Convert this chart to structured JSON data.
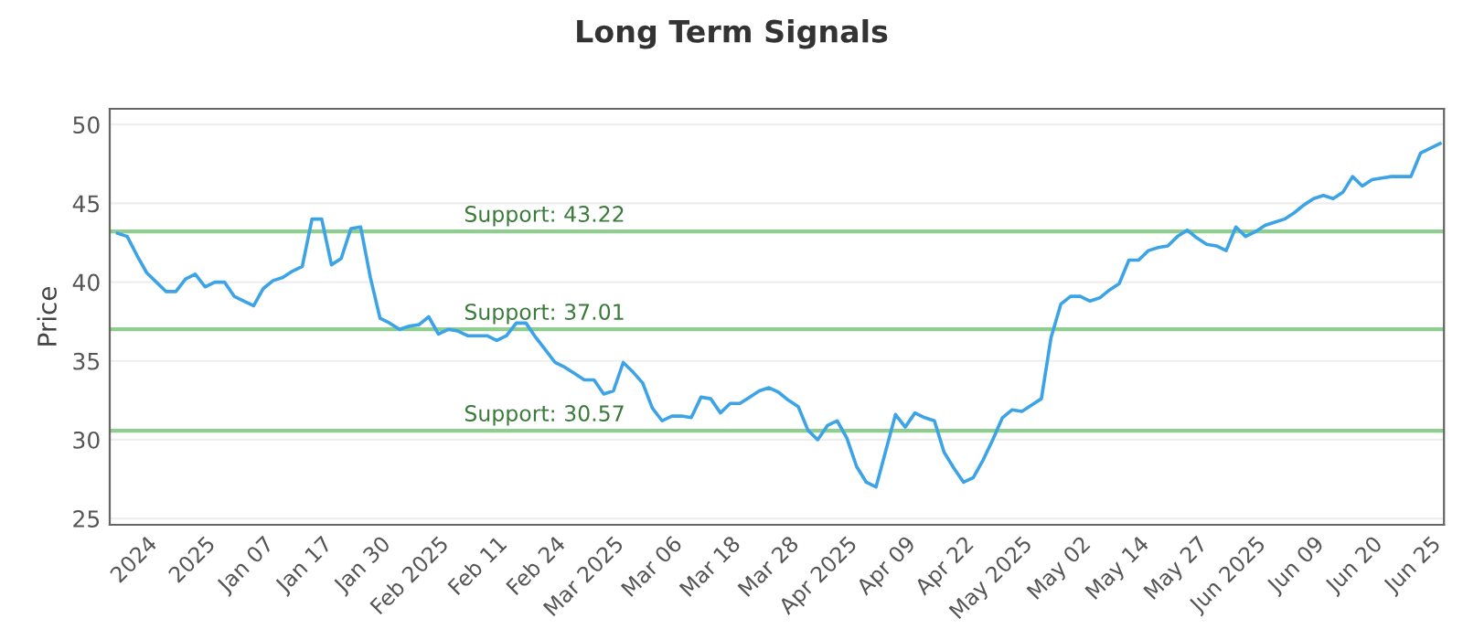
{
  "chart_data": {
    "type": "line",
    "title": "Long Term Signals",
    "ylabel": "Price",
    "categories": [
      null,
      null,
      null,
      "2024",
      null,
      null,
      null,
      null,
      null,
      "2025",
      null,
      null,
      null,
      null,
      null,
      "Jan 07",
      null,
      null,
      null,
      null,
      null,
      "Jan 17",
      null,
      null,
      null,
      null,
      null,
      "Jan 30",
      null,
      null,
      null,
      null,
      null,
      "Feb 2025",
      null,
      null,
      null,
      null,
      null,
      "Feb 11",
      null,
      null,
      null,
      null,
      null,
      "Feb 24",
      null,
      null,
      null,
      null,
      null,
      "Mar 2025",
      null,
      null,
      null,
      null,
      null,
      "Mar 06",
      null,
      null,
      null,
      null,
      null,
      "Mar 18",
      null,
      null,
      null,
      null,
      null,
      "Mar 28",
      null,
      null,
      null,
      null,
      null,
      "Apr 2025",
      null,
      null,
      null,
      null,
      null,
      "Apr 09",
      null,
      null,
      null,
      null,
      null,
      "Apr 22",
      null,
      null,
      null,
      null,
      null,
      "May 2025",
      null,
      null,
      null,
      null,
      null,
      "May 02",
      null,
      null,
      null,
      null,
      null,
      "May 14",
      null,
      null,
      null,
      null,
      null,
      "May 27",
      null,
      null,
      null,
      null,
      null,
      "Jun 2025",
      null,
      null,
      null,
      null,
      null,
      "Jun 09",
      null,
      null,
      null,
      null,
      null,
      "Jun 20",
      null,
      null,
      null,
      null,
      null,
      "Jun 25",
      null
    ],
    "series": [
      {
        "color": "#3ba3e6",
        "values": [
          43.1,
          42.9,
          41.7,
          40.6,
          40.0,
          39.4,
          39.4,
          40.2,
          40.5,
          39.7,
          40.0,
          40.0,
          39.1,
          38.8,
          38.5,
          39.6,
          40.1,
          40.3,
          40.7,
          41.0,
          44.0,
          44.0,
          41.1,
          41.5,
          43.4,
          43.5,
          40.3,
          37.7,
          37.4,
          37.0,
          37.2,
          37.3,
          37.8,
          36.7,
          37.0,
          36.9,
          36.6,
          36.6,
          36.6,
          36.3,
          36.6,
          37.4,
          37.4,
          36.5,
          35.7,
          34.9,
          34.6,
          34.2,
          33.8,
          33.8,
          32.9,
          33.1,
          34.9,
          34.3,
          33.6,
          32.0,
          31.2,
          31.5,
          31.5,
          31.4,
          32.7,
          32.6,
          31.7,
          32.3,
          32.3,
          32.7,
          33.1,
          33.3,
          33.0,
          32.5,
          32.1,
          30.6,
          30.0,
          30.9,
          31.2,
          30.1,
          28.3,
          27.3,
          27.0,
          29.3,
          31.6,
          30.8,
          31.7,
          31.4,
          31.2,
          29.2,
          28.2,
          27.3,
          27.6,
          28.7,
          30.0,
          31.4,
          31.9,
          31.8,
          32.2,
          32.6,
          36.5,
          38.6,
          39.1,
          39.1,
          38.8,
          39.0,
          39.5,
          39.9,
          41.4,
          41.4,
          42.0,
          42.2,
          42.3,
          42.9,
          43.3,
          42.8,
          42.4,
          42.3,
          42.0,
          43.5,
          42.9,
          43.2,
          43.6,
          43.8,
          44.0,
          44.4,
          44.9,
          45.3,
          45.5,
          45.3,
          45.7,
          46.7,
          46.1,
          46.5,
          46.6,
          46.7,
          46.7,
          46.7,
          48.2,
          48.5,
          48.8
        ]
      }
    ],
    "ylim": [
      24.6,
      51
    ],
    "yticks": [
      25,
      30,
      35,
      40,
      45,
      50
    ],
    "grid": "y",
    "ref_lines": [
      {
        "axis": "y",
        "value": 43.22,
        "label": "Support: 43.22",
        "color": "#8fce8f"
      },
      {
        "axis": "y",
        "value": 37.01,
        "label": "Support: 37.01",
        "color": "#8fce8f"
      },
      {
        "axis": "y",
        "value": 30.57,
        "label": "Support: 30.57",
        "color": "#8fce8f"
      }
    ]
  }
}
